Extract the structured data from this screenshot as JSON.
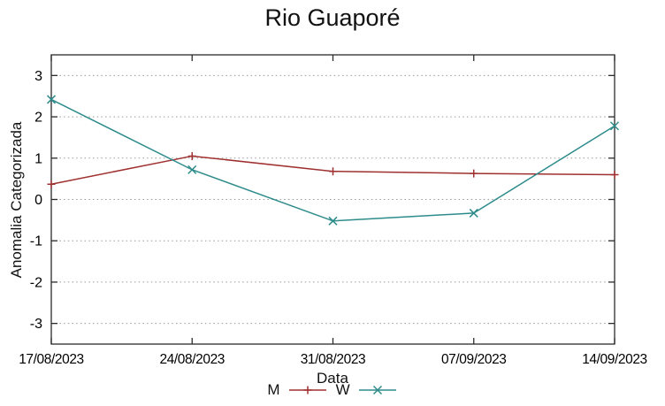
{
  "chart_data": {
    "type": "line",
    "title": "Rio Guaporé",
    "xlabel": "Data",
    "ylabel": "Anomalia Categorizada",
    "categories": [
      "17/08/2023",
      "24/08/2023",
      "31/08/2023",
      "07/09/2023",
      "14/09/2023"
    ],
    "y_ticks": [
      3,
      2,
      1,
      0,
      -1,
      -2,
      -3
    ],
    "ylim": [
      -3.5,
      3.5
    ],
    "grid": "horizontal-dotted",
    "legend_position": "bottom-center-below-xlabel",
    "background": "#ffffff",
    "axis_color": "#2b2b2b",
    "grid_color": "#999999",
    "text_color": "#000000",
    "series": [
      {
        "name": "M",
        "color": "#a03030",
        "marker": "plus",
        "values": [
          0.37,
          1.05,
          0.68,
          0.63,
          0.6
        ]
      },
      {
        "name": "W",
        "color": "#2e8b8b",
        "marker": "cross",
        "values": [
          2.42,
          0.72,
          -0.52,
          -0.33,
          1.78
        ]
      }
    ]
  }
}
